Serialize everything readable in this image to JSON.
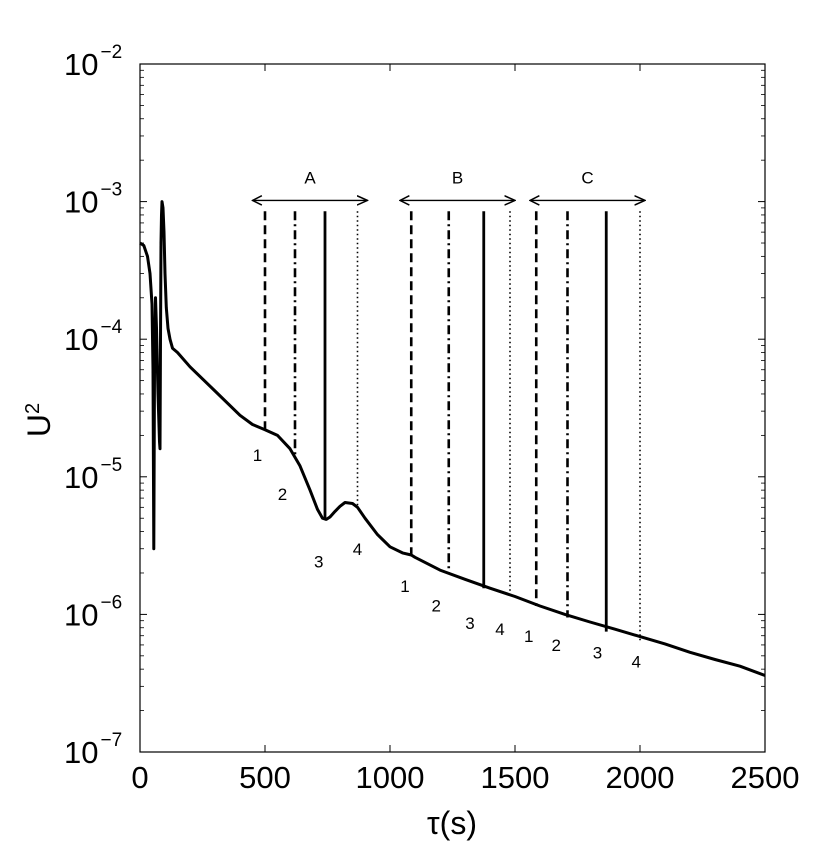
{
  "chart_data": {
    "type": "line",
    "xlabel": "τ(s)",
    "ylabel_base": "U",
    "ylabel_exp": "2",
    "xlim": [
      0,
      2500
    ],
    "ylim": [
      1e-07,
      0.01
    ],
    "yscale": "log",
    "grid": false,
    "x_ticks": [
      "0",
      "500",
      "1000",
      "1500",
      "2000",
      "2500"
    ],
    "y_ticks": [
      {
        "value": 0.01,
        "base": "10",
        "exp": "−2"
      },
      {
        "value": 0.001,
        "base": "10",
        "exp": "−3"
      },
      {
        "value": 0.0001,
        "base": "10",
        "exp": "−4"
      },
      {
        "value": 1e-05,
        "base": "10",
        "exp": "−5"
      },
      {
        "value": 1e-06,
        "base": "10",
        "exp": "−6"
      },
      {
        "value": 1e-07,
        "base": "10",
        "exp": "−7"
      }
    ],
    "series": [
      {
        "x": [
          0,
          15,
          30,
          40,
          48,
          52,
          55,
          58,
          62,
          66,
          72,
          78,
          80,
          82,
          84,
          86,
          88,
          92,
          96,
          100,
          105,
          112,
          120,
          130,
          150,
          200,
          300,
          400,
          450,
          500,
          550,
          600,
          640,
          680,
          710,
          730,
          745,
          760,
          780,
          800,
          820,
          850,
          870,
          900,
          950,
          1000,
          1050,
          1085,
          1100,
          1200,
          1300,
          1400,
          1500,
          1600,
          1700,
          1800,
          1900,
          2000,
          2100,
          2200,
          2300,
          2400,
          2500
        ],
        "y": [
          0.0005,
          0.00048,
          0.0004,
          0.0003,
          0.00018,
          6e-05,
          3e-06,
          6e-05,
          0.0002,
          0.00012,
          4e-05,
          1.8e-05,
          1.6e-05,
          0.0001,
          0.0005,
          0.0008,
          0.001,
          0.0009,
          0.0006,
          0.0003,
          0.00017,
          0.00012,
          0.0001,
          8.6e-05,
          8e-05,
          6.3e-05,
          4.2e-05,
          2.8e-05,
          2.4e-05,
          2.2e-05,
          2e-05,
          1.6e-05,
          1.2e-05,
          8e-06,
          5.8e-06,
          5e-06,
          4.9e-06,
          5.1e-06,
          5.6e-06,
          6.1e-06,
          6.5e-06,
          6.4e-06,
          6e-06,
          5e-06,
          3.8e-06,
          3.1e-06,
          2.8e-06,
          2.7e-06,
          2.6e-06,
          2.1e-06,
          1.8e-06,
          1.55e-06,
          1.35e-06,
          1.15e-06,
          1e-06,
          8.8e-07,
          7.8e-07,
          6.9e-07,
          6.1e-07,
          5.3e-07,
          4.7e-07,
          4.2e-07,
          3.6e-07
        ]
      }
    ],
    "markers": [
      {
        "x": 500,
        "y_top": 0.00085,
        "y_bottom": 2.2e-05,
        "style": "dashed",
        "label": "1",
        "label_x": 470,
        "label_y": 1.3e-05
      },
      {
        "x": 620,
        "y_top": 0.00085,
        "y_bottom": 1.4e-05,
        "style": "dashdot",
        "label": "2",
        "label_x": 570,
        "label_y": 6.8e-06
      },
      {
        "x": 740,
        "y_top": 0.00085,
        "y_bottom": 5e-06,
        "style": "solid",
        "label": "3",
        "label_x": 715,
        "label_y": 2.2e-06
      },
      {
        "x": 870,
        "y_top": 0.00085,
        "y_bottom": 6.2e-06,
        "style": "dotted",
        "label": "4",
        "label_x": 870,
        "label_y": 2.7e-06
      },
      {
        "x": 1085,
        "y_top": 0.00085,
        "y_bottom": 2.7e-06,
        "style": "dashed",
        "label": "1",
        "label_x": 1060,
        "label_y": 1.45e-06
      },
      {
        "x": 1235,
        "y_top": 0.00085,
        "y_bottom": 2e-06,
        "style": "dashdot",
        "label": "2",
        "label_x": 1185,
        "label_y": 1.05e-06
      },
      {
        "x": 1375,
        "y_top": 0.00085,
        "y_bottom": 1.55e-06,
        "style": "solid",
        "label": "3",
        "label_x": 1320,
        "label_y": 7.8e-07
      },
      {
        "x": 1480,
        "y_top": 0.00085,
        "y_bottom": 1.4e-06,
        "style": "dotted",
        "label": "4",
        "label_x": 1440,
        "label_y": 7.1e-07
      },
      {
        "x": 1585,
        "y_top": 0.00085,
        "y_bottom": 1.15e-06,
        "style": "dashed",
        "label": "1",
        "label_x": 1555,
        "label_y": 6.3e-07
      },
      {
        "x": 1710,
        "y_top": 0.00085,
        "y_bottom": 9.5e-07,
        "style": "dashdot",
        "label": "2",
        "label_x": 1665,
        "label_y": 5.4e-07
      },
      {
        "x": 1865,
        "y_top": 0.00085,
        "y_bottom": 7.5e-07,
        "style": "solid",
        "label": "3",
        "label_x": 1830,
        "label_y": 4.8e-07
      },
      {
        "x": 2000,
        "y_top": 0.00085,
        "y_bottom": 6.4e-07,
        "style": "dotted",
        "label": "4",
        "label_x": 1985,
        "label_y": 4.1e-07
      }
    ],
    "groups": [
      {
        "label": "A",
        "x_start": 450,
        "x_end": 910,
        "y": 0.00102
      },
      {
        "label": "B",
        "x_start": 1040,
        "x_end": 1500,
        "y": 0.00102
      },
      {
        "label": "C",
        "x_start": 1560,
        "x_end": 2020,
        "y": 0.00102
      }
    ]
  }
}
